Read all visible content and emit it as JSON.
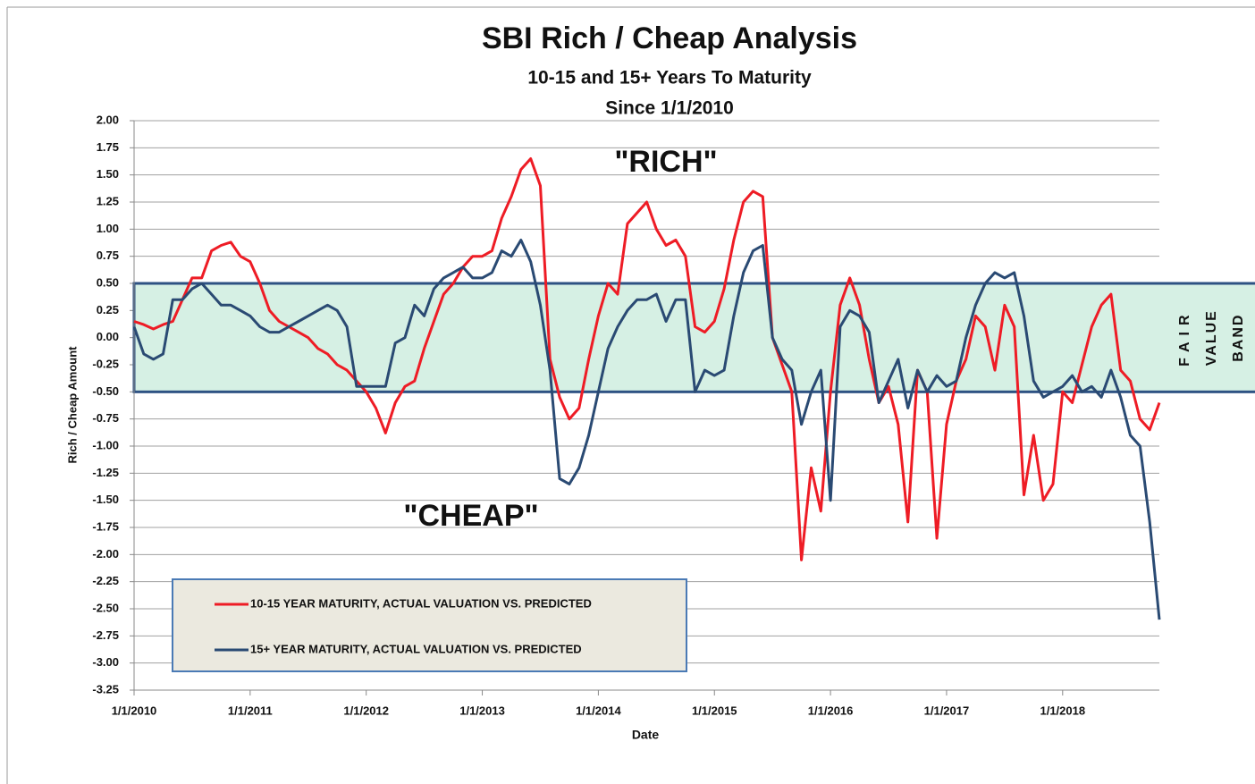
{
  "chart_data": {
    "type": "line",
    "title": "SBI Rich / Cheap Analysis",
    "subtitle": [
      "10-15 and 15+ Years To Maturity",
      "Since 1/1/2010"
    ],
    "y_label": "Rich / Cheap Amount",
    "x_label": "Date",
    "annotations": [
      "\"RICH\"",
      "\"CHEAP\""
    ],
    "band": {
      "from": -0.5,
      "to": 0.5,
      "label": [
        "FAIR",
        "VALUE",
        "BAND"
      ],
      "color": "#d6f0e4",
      "edge_color": "#2e5283"
    },
    "legend": "lower left",
    "grid": true,
    "x": [
      "1/1/2010",
      "2/1/2010",
      "3/1/2010",
      "4/1/2010",
      "5/1/2010",
      "6/1/2010",
      "7/1/2010",
      "8/1/2010",
      "9/1/2010",
      "10/1/2010",
      "11/1/2010",
      "12/1/2010",
      "1/1/2011",
      "2/1/2011",
      "3/1/2011",
      "4/1/2011",
      "5/1/2011",
      "6/1/2011",
      "7/1/2011",
      "8/1/2011",
      "9/1/2011",
      "10/1/2011",
      "11/1/2011",
      "12/1/2011",
      "1/1/2012",
      "2/1/2012",
      "3/1/2012",
      "4/1/2012",
      "5/1/2012",
      "6/1/2012",
      "7/1/2012",
      "8/1/2012",
      "9/1/2012",
      "10/1/2012",
      "11/1/2012",
      "12/1/2012",
      "1/1/2013",
      "2/1/2013",
      "3/1/2013",
      "4/1/2013",
      "5/1/2013",
      "6/1/2013",
      "7/1/2013",
      "8/1/2013",
      "9/1/2013",
      "10/1/2013",
      "11/1/2013",
      "12/1/2013",
      "1/1/2014",
      "2/1/2014",
      "3/1/2014",
      "4/1/2014",
      "5/1/2014",
      "6/1/2014",
      "7/1/2014",
      "8/1/2014",
      "9/1/2014",
      "10/1/2014",
      "11/1/2014",
      "12/1/2014",
      "1/1/2015",
      "2/1/2015",
      "3/1/2015",
      "4/1/2015",
      "5/1/2015",
      "6/1/2015",
      "7/1/2015",
      "8/1/2015",
      "9/1/2015",
      "10/1/2015",
      "11/1/2015",
      "12/1/2015",
      "1/1/2016",
      "2/1/2016",
      "3/1/2016",
      "4/1/2016",
      "5/1/2016",
      "6/1/2016",
      "7/1/2016",
      "8/1/2016",
      "9/1/2016",
      "10/1/2016",
      "11/1/2016",
      "12/1/2016",
      "1/1/2017",
      "2/1/2017",
      "3/1/2017",
      "4/1/2017",
      "5/1/2017",
      "6/1/2017",
      "7/1/2017",
      "8/1/2017",
      "9/1/2017",
      "10/1/2017",
      "11/1/2017",
      "12/1/2017",
      "1/1/2018",
      "2/1/2018",
      "3/1/2018",
      "4/1/2018",
      "5/1/2018",
      "6/1/2018",
      "7/1/2018",
      "8/1/2018",
      "9/1/2018",
      "10/1/2018",
      "11/1/2018"
    ],
    "series": [
      {
        "name": "10-15 YEAR MATURITY, ACTUAL VALUATION VS. PREDICTED",
        "color": "#ee1c25",
        "values": [
          0.15,
          0.12,
          0.08,
          0.12,
          0.15,
          0.35,
          0.55,
          0.55,
          0.8,
          0.85,
          0.88,
          0.75,
          0.7,
          0.5,
          0.25,
          0.15,
          0.1,
          0.05,
          0.0,
          -0.1,
          -0.15,
          -0.25,
          -0.3,
          -0.4,
          -0.5,
          -0.65,
          -0.88,
          -0.6,
          -0.45,
          -0.4,
          -0.1,
          0.15,
          0.4,
          0.5,
          0.65,
          0.75,
          0.75,
          0.8,
          1.1,
          1.3,
          1.55,
          1.65,
          1.4,
          -0.2,
          -0.55,
          -0.75,
          -0.65,
          -0.2,
          0.2,
          0.5,
          0.4,
          1.05,
          1.15,
          1.25,
          1.0,
          0.85,
          0.9,
          0.75,
          0.1,
          0.05,
          0.15,
          0.45,
          0.9,
          1.25,
          1.35,
          1.3,
          0.0,
          -0.25,
          -0.5,
          -2.05,
          -1.2,
          -1.6,
          -0.5,
          0.3,
          0.55,
          0.3,
          -0.2,
          -0.6,
          -0.45,
          -0.8,
          -1.7,
          -0.3,
          -0.5,
          -1.85,
          -0.8,
          -0.4,
          -0.2,
          0.2,
          0.1,
          -0.3,
          0.3,
          0.1,
          -1.45,
          -0.9,
          -1.5,
          -1.35,
          -0.5,
          -0.6,
          -0.25,
          0.1,
          0.3,
          0.4,
          -0.3,
          -0.4,
          -0.75,
          -0.85,
          -0.6
        ]
      },
      {
        "name": "15+ YEAR MATURITY, ACTUAL VALUATION VS. PREDICTED",
        "color": "#2a4a73",
        "values": [
          0.1,
          -0.15,
          -0.2,
          -0.15,
          0.35,
          0.35,
          0.45,
          0.5,
          0.4,
          0.3,
          0.3,
          0.25,
          0.2,
          0.1,
          0.05,
          0.05,
          0.1,
          0.15,
          0.2,
          0.25,
          0.3,
          0.25,
          0.1,
          -0.45,
          -0.45,
          -0.45,
          -0.45,
          -0.05,
          0.0,
          0.3,
          0.2,
          0.45,
          0.55,
          0.6,
          0.65,
          0.55,
          0.55,
          0.6,
          0.8,
          0.75,
          0.9,
          0.7,
          0.3,
          -0.3,
          -1.3,
          -1.35,
          -1.2,
          -0.9,
          -0.5,
          -0.1,
          0.1,
          0.25,
          0.35,
          0.35,
          0.4,
          0.15,
          0.35,
          0.35,
          -0.5,
          -0.3,
          -0.35,
          -0.3,
          0.2,
          0.6,
          0.8,
          0.85,
          0.0,
          -0.2,
          -0.3,
          -0.8,
          -0.5,
          -0.3,
          -1.5,
          0.1,
          0.25,
          0.2,
          0.05,
          -0.6,
          -0.4,
          -0.2,
          -0.65,
          -0.3,
          -0.5,
          -0.35,
          -0.45,
          -0.4,
          0.0,
          0.3,
          0.5,
          0.6,
          0.55,
          0.6,
          0.2,
          -0.4,
          -0.55,
          -0.5,
          -0.45,
          -0.35,
          -0.5,
          -0.45,
          -0.55,
          -0.3,
          -0.55,
          -0.9,
          -1.0,
          -1.7,
          -2.6
        ]
      }
    ],
    "xlim": [
      "1/1/2010",
      "11/1/2018"
    ],
    "xticks": [
      "1/1/2010",
      "1/1/2011",
      "1/1/2012",
      "1/1/2013",
      "1/1/2014",
      "1/1/2015",
      "1/1/2016",
      "1/1/2017",
      "1/1/2018"
    ],
    "ylim": [
      -3.25,
      2
    ],
    "yticks": [
      {
        "value": 2,
        "label": "2.00"
      },
      {
        "value": 1.75,
        "label": "1.75"
      },
      {
        "value": 1.5,
        "label": "1.50"
      },
      {
        "value": 1.25,
        "label": "1.25"
      },
      {
        "value": 1,
        "label": "1.00"
      },
      {
        "value": 0.75,
        "label": "0.75"
      },
      {
        "value": 0.5,
        "label": "0.50"
      },
      {
        "value": 0.25,
        "label": "0.25"
      },
      {
        "value": 0,
        "label": "0.00"
      },
      {
        "value": -0.25,
        "label": "-0.25"
      },
      {
        "value": -0.5,
        "label": "-0.50"
      },
      {
        "value": -0.75,
        "label": "-0.75"
      },
      {
        "value": -1,
        "label": "-1.00"
      },
      {
        "value": -1.25,
        "label": "-1.25"
      },
      {
        "value": -1.5,
        "label": "-1.50"
      },
      {
        "value": -1.75,
        "label": "-1.75"
      },
      {
        "value": -2,
        "label": "-2.00"
      },
      {
        "value": -2.25,
        "label": "-2.25"
      },
      {
        "value": -2.5,
        "label": "-2.50"
      },
      {
        "value": -2.75,
        "label": "-2.75"
      },
      {
        "value": -3,
        "label": "-3.00"
      },
      {
        "value": -3.25,
        "label": "-3.25"
      }
    ]
  }
}
